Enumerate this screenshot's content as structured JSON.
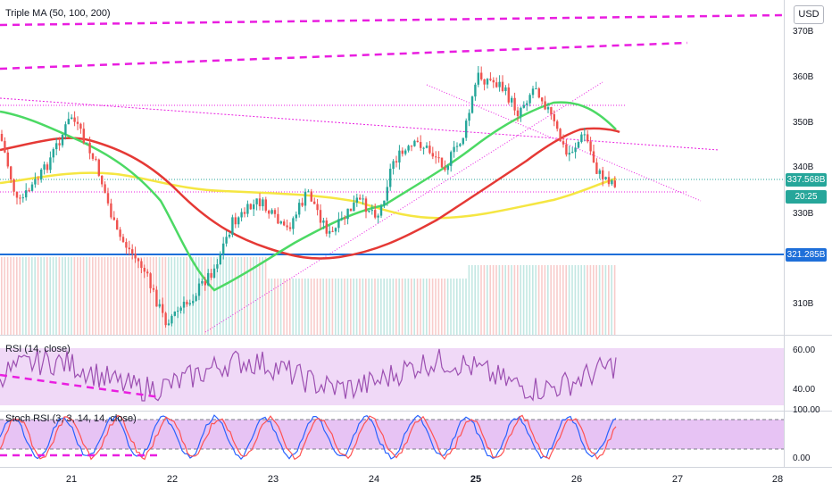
{
  "indicators": {
    "main": "Triple MA (50, 100, 200)",
    "rsi": "RSI (14, close)",
    "stoch": "Stoch RSI (3, 3, 14, 14, close)"
  },
  "currency_button": "USD",
  "price_axis": [
    "370B",
    "360B",
    "350B",
    "340B",
    "330B",
    "310B"
  ],
  "rsi_axis": [
    "60.00",
    "40.00"
  ],
  "stoch_axis": [
    "100.00",
    "0.00"
  ],
  "tags": {
    "last_price": "337.568B",
    "countdown": "20:25",
    "hline_price": "321.285B"
  },
  "dates": [
    "21",
    "22",
    "23",
    "24",
    "25",
    "26",
    "27",
    "28"
  ],
  "colors": {
    "up": "#26a69a",
    "down": "#ef5350",
    "ma50": "#4cd964",
    "ma100": "#e53935",
    "ma200": "#f5e642",
    "trend": "#e91ee0",
    "hline": "#1e6fd9",
    "rsi": "#9c4fb1",
    "stoch_k": "#2962ff",
    "stoch_d": "#ff5252"
  }
}
